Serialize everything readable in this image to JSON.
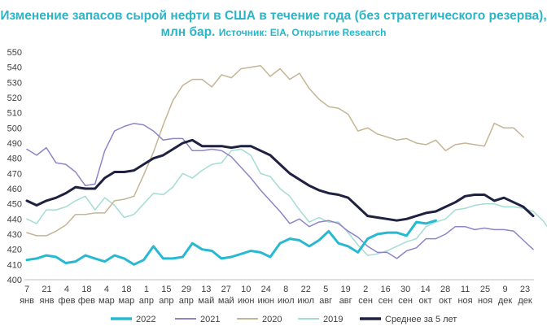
{
  "header": {
    "title_main": "Изменение запасов сырой нефти в США в течение года (без стратегического резерва), млн бар.",
    "title_source": "Источник: EIA, Открытие Research"
  },
  "chart_data": {
    "type": "line",
    "title": "Изменение запасов сырой нефти в США в течение года (без стратегического резерва), млн бар. Источник: EIA, Открытие Research",
    "xlabel": "",
    "ylabel": "",
    "ylim": [
      400,
      550
    ],
    "yticks": [
      400,
      410,
      420,
      430,
      440,
      450,
      460,
      470,
      480,
      490,
      500,
      510,
      520,
      530,
      540,
      550
    ],
    "grid": false,
    "legend_position": "bottom",
    "x_tick_labels": [
      {
        "day": "7",
        "month": "янв"
      },
      {
        "day": "21",
        "month": "янв"
      },
      {
        "day": "4",
        "month": "фев"
      },
      {
        "day": "18",
        "month": "фев"
      },
      {
        "day": "4",
        "month": "мар"
      },
      {
        "day": "18",
        "month": "мар"
      },
      {
        "day": "1",
        "month": "апр"
      },
      {
        "day": "15",
        "month": "апр"
      },
      {
        "day": "29",
        "month": "апр"
      },
      {
        "day": "13",
        "month": "май"
      },
      {
        "day": "27",
        "month": "май"
      },
      {
        "day": "10",
        "month": "июн"
      },
      {
        "day": "24",
        "month": "июн"
      },
      {
        "day": "8",
        "month": "июл"
      },
      {
        "day": "22",
        "month": "июл"
      },
      {
        "day": "5",
        "month": "авг"
      },
      {
        "day": "19",
        "month": "авг"
      },
      {
        "day": "2",
        "month": "сен"
      },
      {
        "day": "16",
        "month": "сен"
      },
      {
        "day": "30",
        "month": "сен"
      },
      {
        "day": "14",
        "month": "окт"
      },
      {
        "day": "28",
        "month": "окт"
      },
      {
        "day": "11",
        "month": "ноя"
      },
      {
        "day": "25",
        "month": "ноя"
      },
      {
        "day": "9",
        "month": "дек"
      },
      {
        "day": "23",
        "month": "дек"
      }
    ],
    "series": [
      {
        "name": "2022",
        "color": "#27b9d2",
        "width": 3,
        "values": [
          413,
          414,
          416,
          415,
          411,
          412,
          416,
          414,
          412,
          416,
          414,
          410,
          413,
          422,
          414,
          414,
          415,
          424,
          420,
          419,
          414,
          415,
          417,
          419,
          418,
          415,
          424,
          427,
          426,
          422,
          426,
          432,
          424,
          422,
          418,
          427,
          430,
          431,
          431,
          429,
          438,
          437,
          439
        ]
      },
      {
        "name": "2021",
        "color": "#8c85c8",
        "width": 1.5,
        "values": [
          486,
          482,
          487,
          477,
          476,
          471,
          462,
          463,
          485,
          498,
          501,
          503,
          502,
          498,
          492,
          493,
          493,
          485,
          485,
          486,
          485,
          481,
          474,
          467,
          459,
          452,
          445,
          437,
          440,
          435,
          438,
          439,
          437,
          432,
          428,
          422,
          418,
          418,
          414,
          419,
          421,
          427,
          427,
          430,
          435,
          435,
          433,
          434,
          433,
          433,
          432,
          426,
          420
        ]
      },
      {
        "name": "2020",
        "color": "#c4b594",
        "width": 1.5,
        "values": [
          431,
          429,
          429,
          432,
          436,
          443,
          443,
          444,
          444,
          452,
          453,
          455,
          469,
          484,
          502,
          518,
          528,
          532,
          532,
          527,
          535,
          533,
          539,
          540,
          541,
          534,
          539,
          532,
          536,
          526,
          519,
          514,
          513,
          509,
          498,
          500,
          496,
          494,
          492,
          493,
          490,
          489,
          492,
          485,
          489,
          490,
          489,
          488,
          503,
          500,
          500,
          494
        ]
      },
      {
        "name": "2019",
        "color": "#a4ddd2",
        "width": 1.5,
        "values": [
          440,
          437,
          446,
          446,
          448,
          452,
          455,
          446,
          454,
          449,
          441,
          443,
          450,
          457,
          456,
          461,
          470,
          467,
          472,
          476,
          477,
          485,
          486,
          482,
          470,
          468,
          460,
          455,
          446,
          438,
          441,
          438,
          438,
          431,
          423,
          416,
          417,
          419,
          422,
          425,
          427,
          435,
          438,
          440,
          446,
          447,
          449,
          450,
          450,
          448,
          448,
          447,
          445,
          439,
          430
        ]
      },
      {
        "name": "Среднее за 5 лет",
        "color": "#1e2140",
        "width": 3,
        "values": [
          452,
          449,
          452,
          454,
          457,
          461,
          460,
          460,
          467,
          471,
          471,
          472,
          476,
          480,
          482,
          486,
          490,
          492,
          488,
          488,
          488,
          487,
          488,
          488,
          485,
          482,
          476,
          470,
          466,
          462,
          459,
          457,
          456,
          454,
          448,
          442,
          441,
          440,
          439,
          440,
          442,
          444,
          445,
          448,
          451,
          455,
          456,
          456,
          452,
          454,
          451,
          448,
          442
        ]
      }
    ]
  }
}
